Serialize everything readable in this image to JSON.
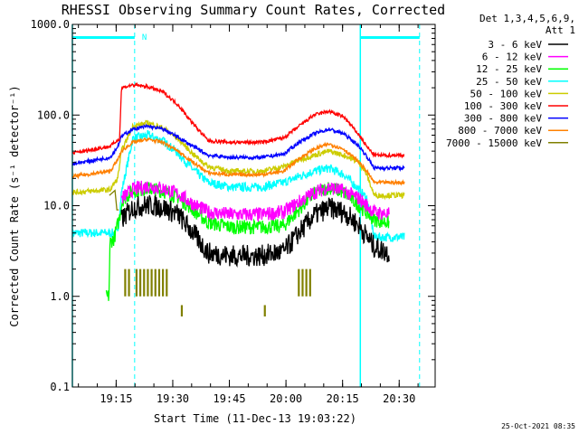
{
  "chart_data": {
    "type": "line",
    "title": "RHESSI Observing Summary Count Rates, Corrected",
    "xlabel": "Start Time (11-Dec-13 19:03:22)",
    "ylabel": "Corrected Count Rate (s⁻¹ detector⁻¹)",
    "yscale": "log",
    "ylim": [
      0.1,
      1000.0
    ],
    "xlim": [
      "19:03:22",
      "20:39:30"
    ],
    "y_tick_labels": [
      "1000.0",
      "100.0",
      "10.0",
      "1.0",
      "0.1"
    ],
    "x_tick_labels": [
      "19:15",
      "19:30",
      "19:45",
      "20:00",
      "20:15",
      "20:30"
    ],
    "x_ticks_minutes": [
      11.6,
      26.6,
      41.6,
      56.6,
      71.6,
      86.6
    ],
    "legend_placement": "right, outside",
    "legend_header": [
      "Det 1,3,4,5,6,9,",
      "Att 1"
    ],
    "timestamp": "25-Oct-2021 08:35",
    "night_marker_label": "N",
    "night_color": "#00ffff",
    "night_intervals_minutes": [
      [
        0,
        16.5
      ],
      [
        76.3,
        92
      ]
    ],
    "time_unit": "minutes after 19:03:22",
    "series": [
      {
        "name": "3 - 6 keV",
        "color": "#000000",
        "noise": 0.12,
        "points": [
          [
            13,
            7.0
          ],
          [
            16,
            9.5
          ],
          [
            20,
            10.2
          ],
          [
            24,
            9.6
          ],
          [
            28,
            8.0
          ],
          [
            32,
            5.0
          ],
          [
            36,
            3.0
          ],
          [
            42,
            2.8
          ],
          [
            50,
            2.8
          ],
          [
            56,
            3.1
          ],
          [
            60,
            5.0
          ],
          [
            64,
            7.8
          ],
          [
            68,
            9.5
          ],
          [
            72,
            8.5
          ],
          [
            76,
            6.0
          ],
          [
            80,
            3.5
          ],
          [
            84,
            3.0
          ]
        ]
      },
      {
        "name": "6 - 12 keV",
        "color": "#ff00ff",
        "noise": 0.08,
        "points": [
          [
            13,
            12.0
          ],
          [
            16,
            15.0
          ],
          [
            20,
            16.5
          ],
          [
            24,
            15.5
          ],
          [
            28,
            13.5
          ],
          [
            32,
            10.5
          ],
          [
            36,
            8.5
          ],
          [
            42,
            8.0
          ],
          [
            50,
            8.0
          ],
          [
            56,
            8.5
          ],
          [
            60,
            11.0
          ],
          [
            64,
            14.0
          ],
          [
            68,
            16.0
          ],
          [
            72,
            14.5
          ],
          [
            76,
            12.0
          ],
          [
            80,
            8.5
          ],
          [
            84,
            8.0
          ]
        ]
      },
      {
        "name": "12 - 25 keV",
        "color": "#00ff00",
        "noise": 0.08,
        "points": [
          [
            9,
            1.0
          ],
          [
            9.7,
            1.0
          ],
          [
            10,
            4.0
          ],
          [
            11,
            4.3
          ],
          [
            12.5,
            7.5
          ],
          [
            13.2,
            11.5
          ],
          [
            16,
            14.5
          ],
          [
            20,
            15.5
          ],
          [
            24,
            14.5
          ],
          [
            28,
            12.5
          ],
          [
            32,
            9.0
          ],
          [
            36,
            6.5
          ],
          [
            42,
            5.8
          ],
          [
            50,
            5.8
          ],
          [
            56,
            6.0
          ],
          [
            60,
            9.0
          ],
          [
            64,
            13.5
          ],
          [
            68,
            16.0
          ],
          [
            72,
            14.0
          ],
          [
            76,
            10.0
          ],
          [
            80,
            7.0
          ],
          [
            84,
            6.5
          ]
        ]
      },
      {
        "name": "25 - 50 keV",
        "color": "#00ffff",
        "noise": 0.05,
        "points": [
          [
            0,
            5.0
          ],
          [
            10,
            5.0
          ],
          [
            12,
            5.0
          ],
          [
            13,
            14.0
          ],
          [
            16,
            55.0
          ],
          [
            20,
            60.0
          ],
          [
            24,
            52.0
          ],
          [
            28,
            38.0
          ],
          [
            32,
            25.0
          ],
          [
            36,
            18.0
          ],
          [
            42,
            16.0
          ],
          [
            50,
            16.0
          ],
          [
            56,
            18.0
          ],
          [
            60,
            21.0
          ],
          [
            64,
            24.0
          ],
          [
            68,
            26.0
          ],
          [
            72,
            22.0
          ],
          [
            76,
            15.0
          ],
          [
            78,
            12.0
          ],
          [
            80,
            4.5
          ],
          [
            88,
            4.5
          ]
        ]
      },
      {
        "name": "50 - 100 keV",
        "color": "#cccc00",
        "noise": 0.03,
        "points": [
          [
            0,
            14.0
          ],
          [
            10,
            15.0
          ],
          [
            12,
            20.0
          ],
          [
            13,
            40.0
          ],
          [
            16,
            75.0
          ],
          [
            20,
            82.0
          ],
          [
            24,
            72.0
          ],
          [
            28,
            55.0
          ],
          [
            32,
            37.0
          ],
          [
            36,
            27.0
          ],
          [
            42,
            24.0
          ],
          [
            50,
            24.0
          ],
          [
            56,
            27.0
          ],
          [
            60,
            32.0
          ],
          [
            64,
            36.0
          ],
          [
            68,
            40.0
          ],
          [
            72,
            36.0
          ],
          [
            76,
            30.0
          ],
          [
            78,
            22.0
          ],
          [
            80,
            13.0
          ],
          [
            88,
            13.0
          ]
        ]
      },
      {
        "name": "100 - 300 keV",
        "color": "#ff0000",
        "noise": 0.02,
        "points": [
          [
            0,
            38.0
          ],
          [
            10,
            45.0
          ],
          [
            12.5,
            55.0
          ],
          [
            13,
            200.0
          ],
          [
            16,
            215.0
          ],
          [
            20,
            205.0
          ],
          [
            24,
            180.0
          ],
          [
            28,
            130.0
          ],
          [
            32,
            80.0
          ],
          [
            36,
            52.0
          ],
          [
            42,
            50.0
          ],
          [
            50,
            50.0
          ],
          [
            56,
            56.0
          ],
          [
            60,
            75.0
          ],
          [
            64,
            100.0
          ],
          [
            68,
            110.0
          ],
          [
            72,
            95.0
          ],
          [
            76,
            60.0
          ],
          [
            78,
            45.0
          ],
          [
            80,
            36.0
          ],
          [
            88,
            36.0
          ]
        ]
      },
      {
        "name": "300 - 800 keV",
        "color": "#0000ff",
        "noise": 0.02,
        "points": [
          [
            0,
            29.0
          ],
          [
            10,
            34.0
          ],
          [
            12,
            45.0
          ],
          [
            13,
            58.0
          ],
          [
            16,
            70.0
          ],
          [
            20,
            75.0
          ],
          [
            24,
            70.0
          ],
          [
            28,
            57.0
          ],
          [
            32,
            45.0
          ],
          [
            36,
            36.0
          ],
          [
            42,
            34.0
          ],
          [
            50,
            34.0
          ],
          [
            56,
            37.0
          ],
          [
            60,
            50.0
          ],
          [
            64,
            62.0
          ],
          [
            68,
            70.0
          ],
          [
            72,
            62.0
          ],
          [
            76,
            45.0
          ],
          [
            78,
            35.0
          ],
          [
            80,
            26.0
          ],
          [
            88,
            26.0
          ]
        ]
      },
      {
        "name": "800 - 7000 keV",
        "color": "#ff8000",
        "noise": 0.02,
        "points": [
          [
            0,
            21.0
          ],
          [
            10,
            24.0
          ],
          [
            12,
            32.0
          ],
          [
            13,
            40.0
          ],
          [
            16,
            50.0
          ],
          [
            20,
            54.0
          ],
          [
            24,
            50.0
          ],
          [
            28,
            40.0
          ],
          [
            32,
            30.0
          ],
          [
            36,
            23.0
          ],
          [
            42,
            22.0
          ],
          [
            50,
            22.0
          ],
          [
            56,
            24.0
          ],
          [
            60,
            33.0
          ],
          [
            64,
            42.0
          ],
          [
            68,
            48.0
          ],
          [
            72,
            42.0
          ],
          [
            76,
            30.0
          ],
          [
            78,
            24.0
          ],
          [
            80,
            18.0
          ],
          [
            88,
            18.0
          ]
        ]
      },
      {
        "name": "7000 - 15000 keV",
        "color": "#808000",
        "noise": 0.0,
        "points": [
          [
            9.8,
            13.0
          ],
          [
            11.5,
            15.0
          ],
          [
            11.6,
            9.0
          ],
          [
            12.5,
            9.0
          ]
        ],
        "spikes": [
          [
            14,
            1.0,
            2.0
          ],
          [
            15,
            1.0,
            2.0
          ],
          [
            17,
            1.0,
            2.0
          ],
          [
            18,
            1.0,
            2.0
          ],
          [
            19,
            1.0,
            2.0
          ],
          [
            20,
            1.0,
            2.0
          ],
          [
            21,
            1.0,
            2.0
          ],
          [
            22,
            1.0,
            2.0
          ],
          [
            23,
            1.0,
            2.0
          ],
          [
            24,
            1.0,
            2.0
          ],
          [
            25,
            1.0,
            2.0
          ],
          [
            60,
            1.0,
            2.0
          ],
          [
            61,
            1.0,
            2.0
          ],
          [
            62,
            1.0,
            2.0
          ],
          [
            63,
            1.0,
            2.0
          ],
          [
            29,
            0.6,
            0.8
          ],
          [
            51,
            0.6,
            0.8
          ]
        ]
      }
    ]
  }
}
